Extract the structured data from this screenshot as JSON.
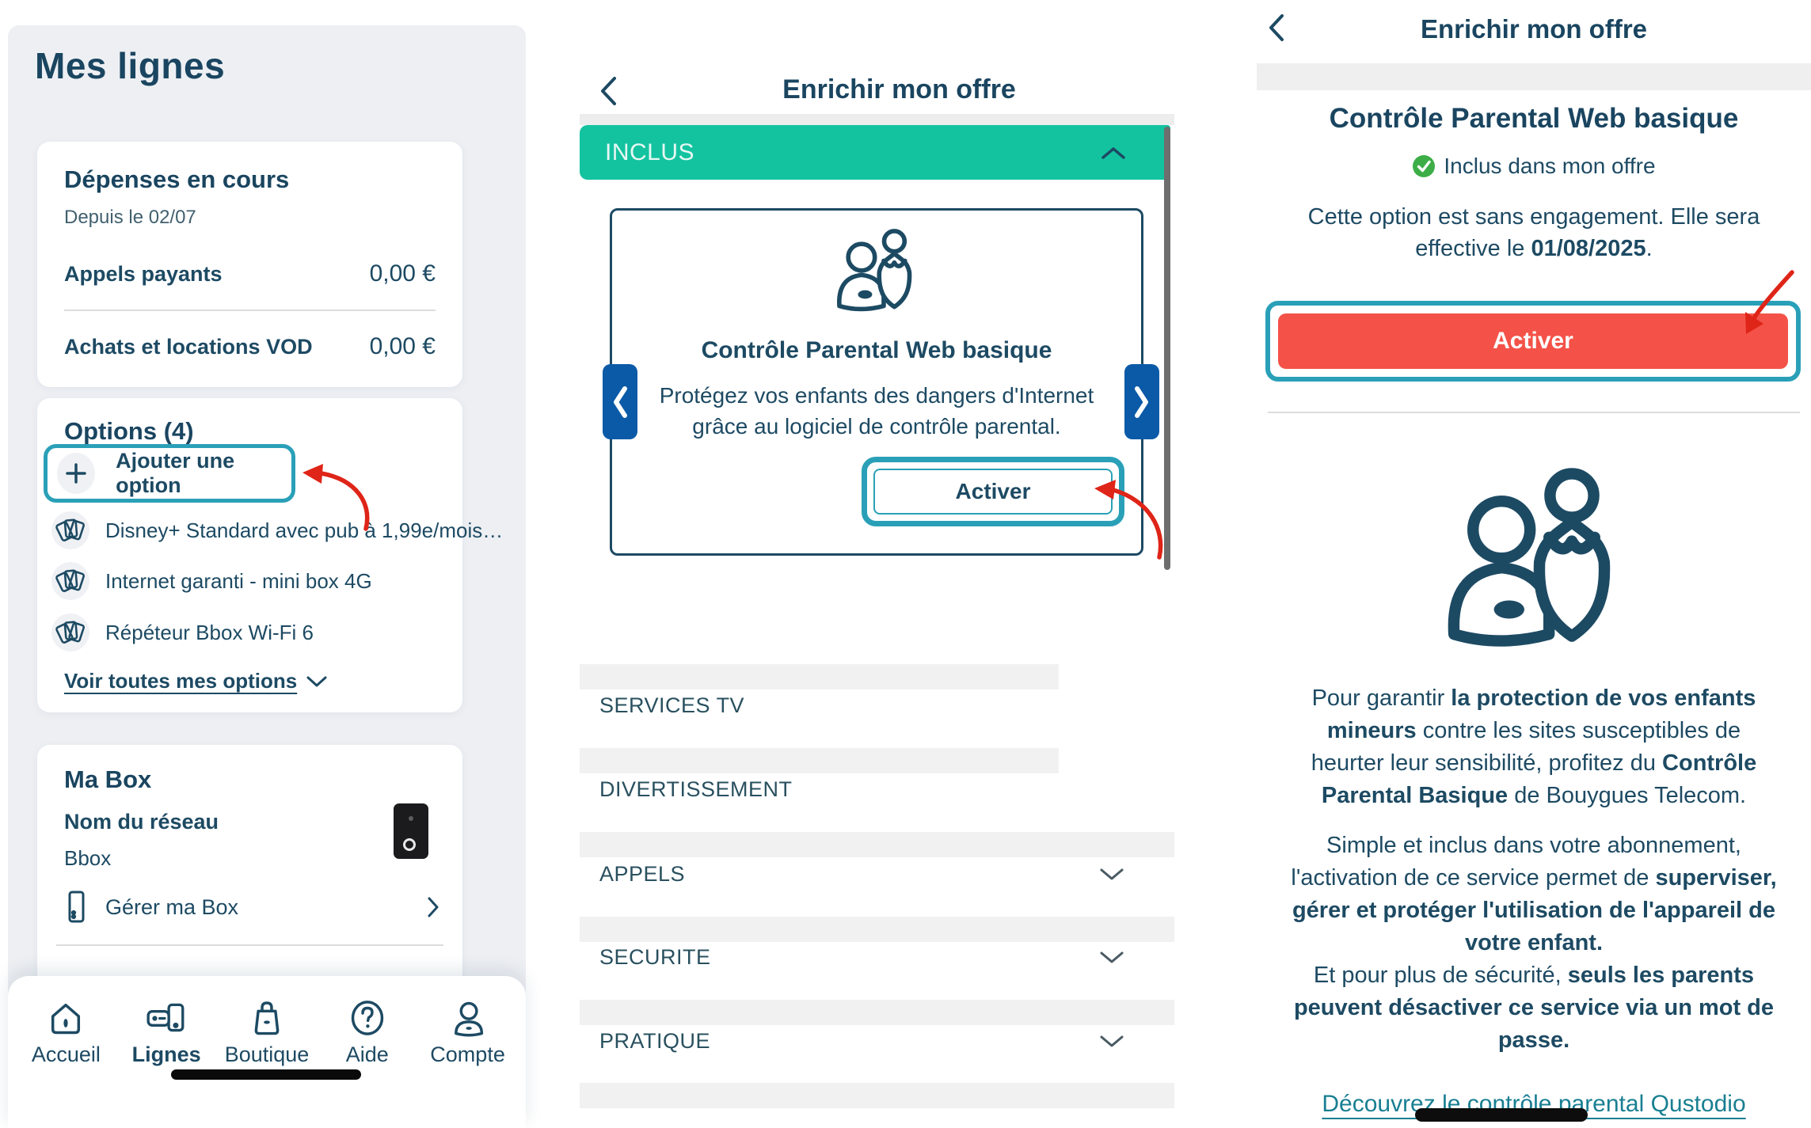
{
  "colors": {
    "navy": "#1d4a63",
    "teal_accent": "#2aa0b8",
    "green_bar": "#13c3a0",
    "check_green": "#3dae47",
    "cta_red": "#f45248",
    "arrow_red": "#df2418",
    "carousel_blue": "#0b5aa7",
    "panel_bg": "#edeff3",
    "placeholder_gray": "#f1f1f1",
    "link_teal": "#197f92"
  },
  "left_panel": {
    "title": "Mes lignes",
    "expenses_card": {
      "title": "Dépenses en cours",
      "subtitle": "Depuis le 02/07",
      "rows": [
        {
          "label": "Appels payants",
          "value": "0,00 €"
        },
        {
          "label": "Achats et locations VOD",
          "value": "0,00 €"
        }
      ]
    },
    "options_card": {
      "title": "Options (4)",
      "add_button_label": "Ajouter une option",
      "items": [
        {
          "label": "Disney+ Standard avec pub à 1,99e/mois…"
        },
        {
          "label": "Internet garanti - mini box 4G"
        },
        {
          "label": "Répéteur Bbox Wi-Fi 6"
        }
      ],
      "see_all_label": "Voir toutes mes options"
    },
    "box_card": {
      "title": "Ma Box",
      "network_label": "Nom du réseau",
      "network_name": "Bbox",
      "manage_label": "Gérer ma Box"
    },
    "nav": {
      "items": [
        {
          "label": "Accueil",
          "icon": "home-icon",
          "active": false
        },
        {
          "label": "Lignes",
          "icon": "lines-icon",
          "active": true
        },
        {
          "label": "Boutique",
          "icon": "shop-icon",
          "active": false
        },
        {
          "label": "Aide",
          "icon": "help-icon",
          "active": false
        },
        {
          "label": "Compte",
          "icon": "account-icon",
          "active": false
        }
      ]
    }
  },
  "middle_panel": {
    "header_title": "Enrichir mon offre",
    "included_header": "INCLUS",
    "card": {
      "title": "Contrôle Parental Web basique",
      "description_line1": "Protégez vos enfants des dangers d'Internet",
      "description_line2": "grâce au logiciel de contrôle parental.",
      "cta_label": "Activer"
    },
    "sections": [
      {
        "label": "SERVICES TV"
      },
      {
        "label": "DIVERTISSEMENT"
      },
      {
        "label": "APPELS"
      },
      {
        "label": "SECURITE"
      },
      {
        "label": "PRATIQUE"
      }
    ]
  },
  "right_panel": {
    "header_title": "Enrichir mon offre",
    "title": "Contrôle Parental Web basique",
    "included_badge": "Inclus dans mon offre",
    "engagement_text": [
      {
        "t": "Cette option est sans engagement. Elle sera effective le ",
        "b": 0
      },
      {
        "t": "01/08/2025",
        "b": 1
      },
      {
        "t": ".",
        "b": 0
      }
    ],
    "cta_label": "Activer",
    "paragraphs": [
      [
        {
          "t": "Pour garantir ",
          "b": 0
        },
        {
          "t": "la protection de vos enfants mineurs",
          "b": 1
        },
        {
          "t": " contre les sites susceptibles de heurter leur sensibilité, profitez du ",
          "b": 0
        },
        {
          "t": "Contrôle Parental Basique",
          "b": 1
        },
        {
          "t": " de Bouygues Telecom.",
          "b": 0
        }
      ],
      [
        {
          "t": "Simple et inclus dans votre abonnement, l'activation de ce service permet de ",
          "b": 0
        },
        {
          "t": "superviser, gérer et protéger l'utilisation de l'appareil de votre enfant.",
          "b": 1
        }
      ],
      [
        {
          "t": "Et pour plus de sécurité, ",
          "b": 0
        },
        {
          "t": "seuls les parents peuvent désactiver ce service via un mot de passe.",
          "b": 1
        }
      ]
    ],
    "link_label": "Découvrez le contrôle parental Qustodio"
  }
}
